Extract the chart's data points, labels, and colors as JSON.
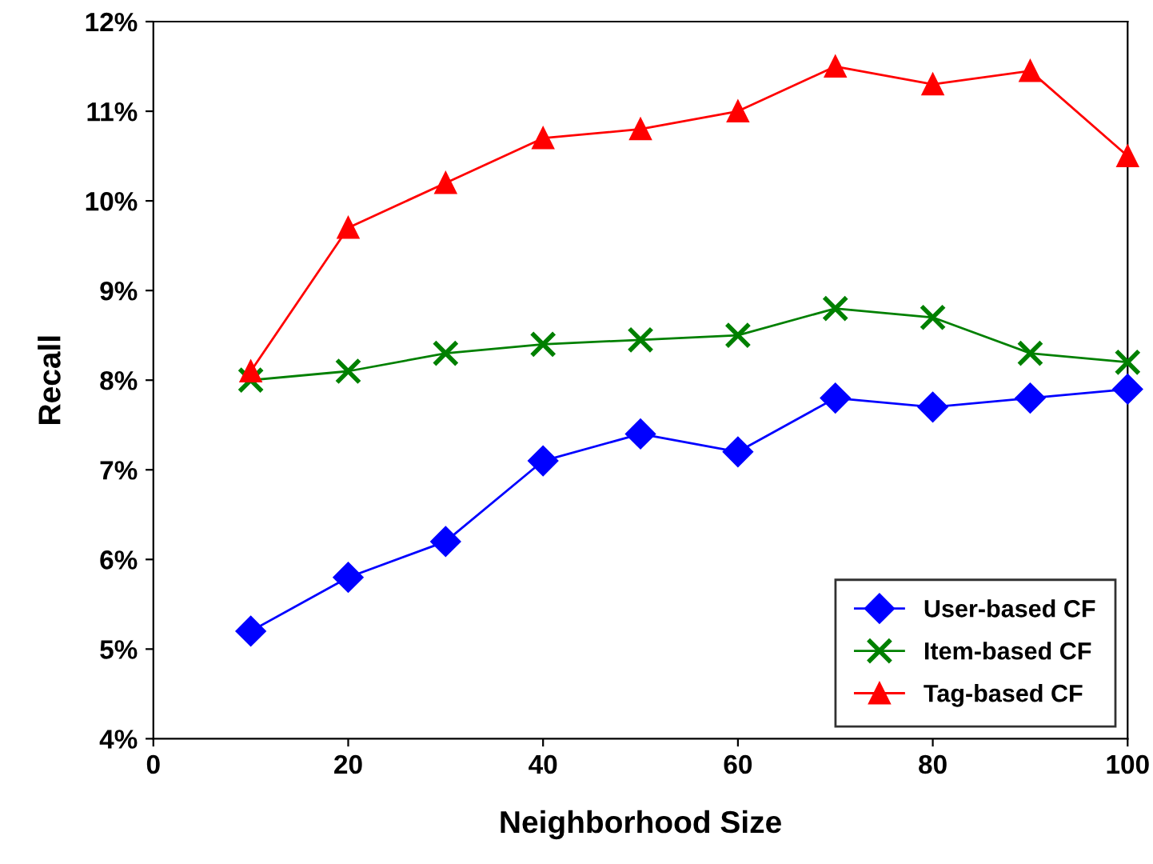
{
  "chart_data": {
    "type": "line",
    "xlabel": "Neighborhood Size",
    "ylabel": "Recall",
    "x": [
      10,
      20,
      30,
      40,
      50,
      60,
      70,
      80,
      90,
      100
    ],
    "series": [
      {
        "name": "User-based CF",
        "color": "#0000ff",
        "marker": "diamond",
        "values": [
          5.2,
          5.8,
          6.2,
          7.1,
          7.4,
          7.2,
          7.8,
          7.7,
          7.8,
          7.9
        ]
      },
      {
        "name": "Item-based CF",
        "color": "#008000",
        "marker": "cross",
        "values": [
          8.0,
          8.1,
          8.3,
          8.4,
          8.45,
          8.5,
          8.8,
          8.7,
          8.3,
          8.2
        ]
      },
      {
        "name": "Tag-based CF",
        "color": "#ff0000",
        "marker": "triangle",
        "values": [
          8.1,
          9.7,
          10.2,
          10.7,
          10.8,
          11.0,
          11.5,
          11.3,
          11.45,
          10.5
        ]
      }
    ],
    "xlim": [
      0,
      100
    ],
    "xticks": [
      0,
      20,
      40,
      60,
      80,
      100
    ],
    "ylim": [
      4,
      12
    ],
    "yticks": [
      {
        "value": 4,
        "label": "4%"
      },
      {
        "value": 5,
        "label": "5%"
      },
      {
        "value": 6,
        "label": "6%"
      },
      {
        "value": 7,
        "label": "7%"
      },
      {
        "value": 8,
        "label": "8%"
      },
      {
        "value": 9,
        "label": "9%"
      },
      {
        "value": 10,
        "label": "10%"
      },
      {
        "value": 11,
        "label": "11%"
      },
      {
        "value": 12,
        "label": "12%"
      }
    ],
    "legend": "lower right",
    "grid": false
  }
}
